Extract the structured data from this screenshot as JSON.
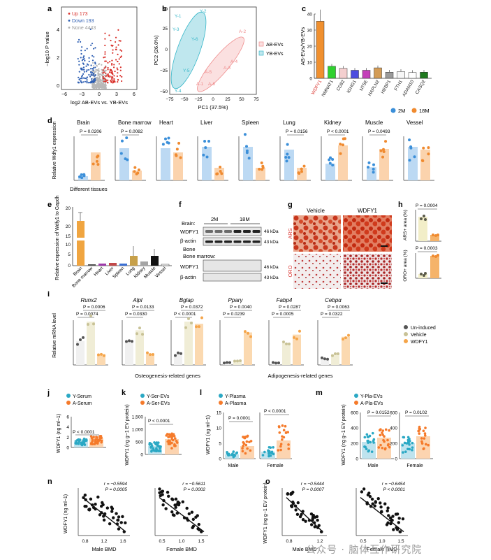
{
  "figure": {
    "panel_a": {
      "label": "a",
      "legend": [
        "Up 173",
        "Down 193",
        "None 4443"
      ],
      "ylabel": "−log10 P value",
      "xlabel": "log2 AB-EVs vs. YB-EVs",
      "xticks": [
        "−6",
        "−3",
        "0",
        "3",
        "6"
      ],
      "yticks": [
        "0",
        "2",
        "4"
      ],
      "colors": {
        "up": "#d9312b",
        "down": "#2f5fb3",
        "none": "#b0b0b0"
      }
    },
    "panel_b": {
      "label": "b",
      "xlabel": "PC1 (37.5%)",
      "ylabel": "PC2 (26.0%)",
      "xticks": [
        "−75",
        "−50",
        "−25",
        "0",
        "25",
        "50",
        "75"
      ],
      "yticks": [
        "−50",
        "−25",
        "0",
        "25",
        "50"
      ],
      "legend": [
        "AB-EVs",
        "YB-EVs"
      ],
      "points_y": [
        "Y-1",
        "Y-2",
        "Y-3",
        "Y-6",
        "Y-5",
        "Y-4"
      ],
      "points_a": [
        "A-2",
        "A-4",
        "A-3",
        "A-5",
        "A-1",
        "A-6"
      ],
      "colors": {
        "ab": "#ef8b8b",
        "yb": "#39b7c9"
      }
    },
    "panel_c": {
      "label": "c",
      "ylabel": "AB-EVs/YB-EVs",
      "yticks": [
        "0",
        "10",
        "20",
        "30",
        "40"
      ],
      "categories": [
        "WDFY1",
        "NMNAT1",
        "CD82",
        "IGHG1",
        "NT5E",
        "HAPLN2",
        "HEBP1",
        "FTH1",
        "ADAM10",
        "CASQ2"
      ],
      "values": [
        35.5,
        7.5,
        6.2,
        5.0,
        5.0,
        6.5,
        3.8,
        4.2,
        3.6,
        3.8
      ],
      "bar_colors": [
        "#f0902f",
        "#2fd12f",
        "#f4cfcf",
        "#4d4de0",
        "#c43fb9",
        "#d39c56",
        "#9a9a9a",
        "#f7f7f7",
        "#ffffff",
        "#1f7a1f"
      ]
    },
    "panel_d": {
      "label": "d",
      "legend": [
        "2M",
        "18M"
      ],
      "ylabel": "Relative Wdfy1 expression",
      "xlabel": "Different tissues",
      "colors": {
        "young": "#3b8fd9",
        "old": "#f08a2f"
      },
      "tissues": [
        {
          "name": "Brain",
          "p": "P = 0.0206"
        },
        {
          "name": "Bone marrow",
          "p": "P = 0.0082"
        },
        {
          "name": "Heart",
          "p": ""
        },
        {
          "name": "Liver",
          "p": ""
        },
        {
          "name": "Spleen",
          "p": ""
        },
        {
          "name": "Lung",
          "p": "P = 0.0156"
        },
        {
          "name": "Kidney",
          "p": "P < 0.0001"
        },
        {
          "name": "Muscle",
          "p": "P = 0.0493"
        },
        {
          "name": "Vessel",
          "p": ""
        }
      ]
    },
    "panel_e": {
      "label": "e",
      "ylabel": "Relative expression of Wdfy1 to Gapdh",
      "yticks": [
        "0",
        "5",
        "10",
        "15",
        "20",
        "20"
      ],
      "categories": [
        "Brain",
        "Bone marrow",
        "Heart",
        "Liver",
        "Spleen",
        "Lung",
        "Kidney",
        "Muscle",
        "Vessel"
      ]
    },
    "panel_f": {
      "label": "f",
      "brain_label": "Brain:",
      "groups": [
        "2M",
        "18M"
      ],
      "rows": [
        "WDFY1",
        "β-actin",
        "WDFY1",
        "β-actin"
      ],
      "bm_label": "Bone marrow:",
      "kda": [
        "46 kDa",
        "43 kDa",
        "46 kDa",
        "43 kDa"
      ]
    },
    "panel_g": {
      "label": "g",
      "cols": [
        "Vehicle",
        "WDFY1"
      ],
      "rows": [
        "ARS",
        "ORO"
      ]
    },
    "panel_h": {
      "label": "h",
      "top_ylabel": "ARS+ area (%)",
      "top_p": "P = 0.0004",
      "bottom_ylabel": "ORO+ area (%)",
      "bottom_p": "P = 0.0003"
    },
    "panel_i": {
      "label": "i",
      "ylabel": "Relative mRNA level",
      "legend": [
        "Un-induced",
        "Vehicle",
        "WDFY1"
      ],
      "genes": [
        {
          "name": "Runx2",
          "p1": "P = 0.0006",
          "p2": "P = 0.0074"
        },
        {
          "name": "Alpl",
          "p1": "P = 0.0133",
          "p2": "P = 0.0330"
        },
        {
          "name": "Bglap",
          "p1": "P = 0.0372",
          "p2": "P < 0.0001"
        },
        {
          "name": "Pparγ",
          "p1": "P = 0.0040",
          "p2": "P = 0.0239"
        },
        {
          "name": "Fabp4",
          "p1": "P = 0.0287",
          "p2": "P = 0.0005"
        },
        {
          "name": "Cebpα",
          "p1": "P = 0.0063",
          "p2": "P = 0.0322"
        }
      ],
      "group_left": "Osteogenesis-related genes",
      "group_right": "Adipogenesis-related genes",
      "colors": {
        "uninduced": "#555555",
        "vehicle": "#c8c296",
        "wdfy1": "#f5a54a"
      }
    },
    "panel_j": {
      "label": "j",
      "legend": [
        "Y-Serum",
        "A-Serum"
      ],
      "ylabel": "WDFY1 (ng ml−1)",
      "p": "P < 0.0001",
      "yticks": [
        "0",
        "2",
        "4",
        "6"
      ]
    },
    "panel_k": {
      "label": "k",
      "legend": [
        "Y-Ser-EVs",
        "A-Ser-EVs"
      ],
      "ylabel": "WDFY1 (ng g−1 EV protein)",
      "p": "P < 0.0001",
      "yticks": [
        "0",
        "500",
        "1,000",
        "1,500"
      ]
    },
    "panel_l": {
      "label": "l",
      "legend": [
        "Y-Plasma",
        "A-Plasma"
      ],
      "ylabel": "WDFY1 (ng ml−1)",
      "p_male": "P = 0.0001",
      "p_female": "P < 0.0001",
      "xlabels": [
        "Male",
        "Female"
      ],
      "yticks": [
        "0",
        "5",
        "10",
        "15"
      ]
    },
    "panel_m": {
      "label": "m",
      "legend": [
        "Y-Pla-EVs",
        "A-Pla-EVs"
      ],
      "ylabel": "WDFY1 (ng g−1 EV protein)",
      "p_male": "P = 0.0152",
      "p_female": "P = 0.0102",
      "xlabels": [
        "Male",
        "Female"
      ],
      "yticks": [
        "0",
        "200",
        "400",
        "600"
      ]
    },
    "panel_n": {
      "label": "n",
      "ylabel": "WDFY1 (ng ml−1)",
      "male": {
        "r": "r = −0.5594",
        "p": "P = 0.0005",
        "xlabel": "Male BMD",
        "xticks": [
          "0.8",
          "1.2",
          "1.6"
        ]
      },
      "female": {
        "r": "r = −0.5611",
        "p": "P = 0.0002",
        "xlabel": "Female BMD",
        "xticks": [
          "0.5",
          "1.0",
          "1.5"
        ]
      }
    },
    "panel_o": {
      "label": "o",
      "ylabel": "WDFY1 (ng g−1 EV protein)",
      "male": {
        "r": "r = −0.5444",
        "p": "P = 0.0007",
        "xlabel": "Male BMD",
        "xticks": [
          "0.8",
          "1.2"
        ]
      },
      "female": {
        "r": "r = −0.6454",
        "p": "P < 0.0001",
        "xlabel": "Female BMD",
        "xticks": [
          "0.5",
          "1.0",
          "1.5"
        ]
      }
    },
    "watermark": "公众号 · 脑体互作研究院"
  },
  "chart_data": [
    {
      "type": "bar",
      "title": "",
      "categories": [
        "WDFY1",
        "NMNAT1",
        "CD82",
        "IGHG1",
        "NT5E",
        "HAPLN2",
        "HEBP1",
        "FTH1",
        "ADAM10",
        "CASQ2"
      ],
      "values": [
        35.5,
        7.5,
        6.2,
        5.0,
        5.0,
        6.5,
        3.8,
        4.2,
        3.6,
        3.8
      ],
      "ylabel": "AB-EVs/YB-EVs",
      "ylim": [
        0,
        40
      ]
    }
  ]
}
